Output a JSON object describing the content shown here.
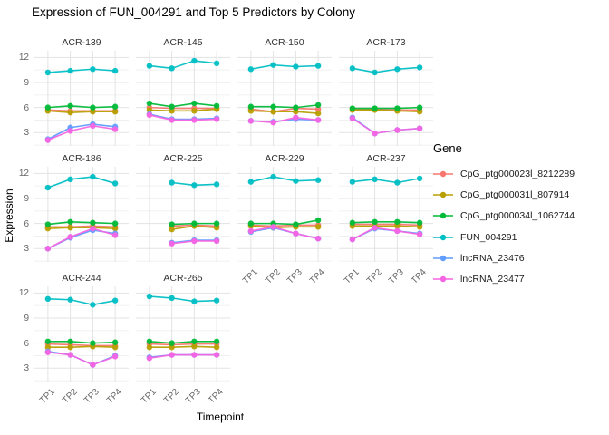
{
  "title": "Expression of FUN_004291 and Top 5 Predictors by Colony",
  "legend": {
    "title": "Gene"
  },
  "chart_data": {
    "type": "line",
    "facet_by": "Colony",
    "title": "Expression of FUN_004291 and Top 5 Predictors by Colony",
    "xlabel": "Timepoint",
    "ylabel": "Expression",
    "legend_title": "Gene",
    "legend_position": "right",
    "grid": "on",
    "x": [
      "TP1",
      "TP2",
      "TP3",
      "TP4"
    ],
    "y_ticks": [
      3,
      6,
      9,
      12
    ],
    "y_minor_ticks": [
      1.5,
      4.5,
      7.5,
      10.5
    ],
    "ylim": [
      1.4,
      12.8
    ],
    "genes": [
      {
        "name": "CpG_ptg000023l_8212289",
        "color": "#F8766D"
      },
      {
        "name": "CpG_ptg000031l_807914",
        "color": "#B79F00"
      },
      {
        "name": "CpG_ptg000034l_1062744",
        "color": "#00BA38"
      },
      {
        "name": "FUN_004291",
        "color": "#00BFC4"
      },
      {
        "name": "lncRNA_23476",
        "color": "#619CFF"
      },
      {
        "name": "lncRNA_23477",
        "color": "#F564E3"
      }
    ],
    "facets": [
      {
        "name": "ACR-139",
        "values": [
          [
            5.7,
            5.6,
            5.6,
            5.6
          ],
          [
            5.6,
            5.4,
            5.5,
            5.5
          ],
          [
            6.0,
            6.2,
            6.0,
            6.1
          ],
          [
            10.2,
            10.4,
            10.6,
            10.4
          ],
          [
            2.2,
            3.6,
            4.0,
            3.7
          ],
          [
            2.1,
            3.2,
            3.8,
            3.4
          ]
        ]
      },
      {
        "name": "ACR-145",
        "values": [
          [
            6.0,
            5.9,
            5.9,
            5.9
          ],
          [
            5.7,
            5.6,
            5.6,
            5.8
          ],
          [
            6.5,
            6.1,
            6.5,
            6.2
          ],
          [
            11.0,
            10.7,
            11.6,
            11.3
          ],
          [
            5.2,
            4.6,
            4.6,
            4.7
          ],
          [
            5.1,
            4.5,
            4.5,
            4.6
          ]
        ]
      },
      {
        "name": "ACR-150",
        "values": [
          [
            5.8,
            5.5,
            5.9,
            5.8
          ],
          [
            5.6,
            5.5,
            5.5,
            5.3
          ],
          [
            6.1,
            6.1,
            6.0,
            6.3
          ],
          [
            10.6,
            11.1,
            10.9,
            11.0
          ],
          [
            4.4,
            4.3,
            4.6,
            4.5
          ],
          [
            4.4,
            4.2,
            4.8,
            4.5
          ]
        ]
      },
      {
        "name": "ACR-173",
        "values": [
          [
            5.8,
            5.8,
            5.7,
            5.7
          ],
          [
            5.7,
            5.7,
            5.6,
            5.5
          ],
          [
            5.9,
            5.9,
            5.9,
            6.0
          ],
          [
            10.7,
            10.2,
            10.6,
            10.8
          ],
          [
            4.8,
            2.9,
            3.3,
            3.5
          ],
          [
            4.7,
            2.9,
            3.3,
            3.5
          ]
        ]
      },
      {
        "name": "ACR-186",
        "values": [
          [
            5.6,
            5.6,
            5.7,
            5.6
          ],
          [
            5.4,
            5.5,
            5.5,
            5.4
          ],
          [
            5.9,
            6.2,
            6.1,
            6.0
          ],
          [
            10.3,
            11.3,
            11.6,
            10.8
          ],
          [
            3.0,
            4.3,
            5.2,
            4.8
          ],
          [
            3.0,
            4.4,
            5.4,
            4.6
          ]
        ]
      },
      {
        "name": "ACR-225",
        "values": [
          [
            null,
            5.7,
            5.8,
            5.7
          ],
          [
            null,
            5.3,
            5.7,
            5.5
          ],
          [
            null,
            5.9,
            6.0,
            6.0
          ],
          [
            null,
            10.9,
            10.6,
            10.7
          ],
          [
            null,
            3.7,
            4.0,
            4.0
          ],
          [
            null,
            3.6,
            3.9,
            3.9
          ]
        ]
      },
      {
        "name": "ACR-229",
        "values": [
          [
            5.8,
            5.7,
            5.8,
            5.8
          ],
          [
            5.7,
            5.5,
            5.6,
            5.6
          ],
          [
            6.0,
            6.0,
            5.9,
            6.4
          ],
          [
            11.0,
            11.6,
            11.1,
            11.2
          ],
          [
            5.0,
            5.5,
            4.8,
            4.2
          ],
          [
            5.1,
            5.6,
            4.8,
            4.2
          ]
        ]
      },
      {
        "name": "ACR-237",
        "values": [
          [
            5.9,
            5.9,
            5.9,
            5.8
          ],
          [
            5.7,
            5.7,
            5.7,
            5.6
          ],
          [
            6.1,
            6.2,
            6.2,
            6.1
          ],
          [
            11.0,
            11.3,
            10.9,
            11.4
          ],
          [
            4.1,
            5.4,
            5.1,
            4.8
          ],
          [
            4.1,
            5.5,
            5.1,
            4.7
          ]
        ]
      },
      {
        "name": "ACR-244",
        "values": [
          [
            5.9,
            5.8,
            5.7,
            5.7
          ],
          [
            5.5,
            5.5,
            5.6,
            5.5
          ],
          [
            6.2,
            6.2,
            6.0,
            6.1
          ],
          [
            11.3,
            11.2,
            10.6,
            11.1
          ],
          [
            5.0,
            4.6,
            3.4,
            4.5
          ],
          [
            4.9,
            4.6,
            3.4,
            4.4
          ]
        ]
      },
      {
        "name": "ACR-265",
        "values": [
          [
            5.9,
            5.8,
            5.9,
            5.9
          ],
          [
            5.5,
            5.5,
            5.6,
            5.5
          ],
          [
            6.2,
            6.0,
            6.2,
            6.2
          ],
          [
            11.6,
            11.4,
            11.0,
            11.1
          ],
          [
            4.3,
            4.6,
            4.6,
            4.6
          ],
          [
            4.2,
            4.6,
            4.6,
            4.6
          ]
        ]
      }
    ]
  }
}
